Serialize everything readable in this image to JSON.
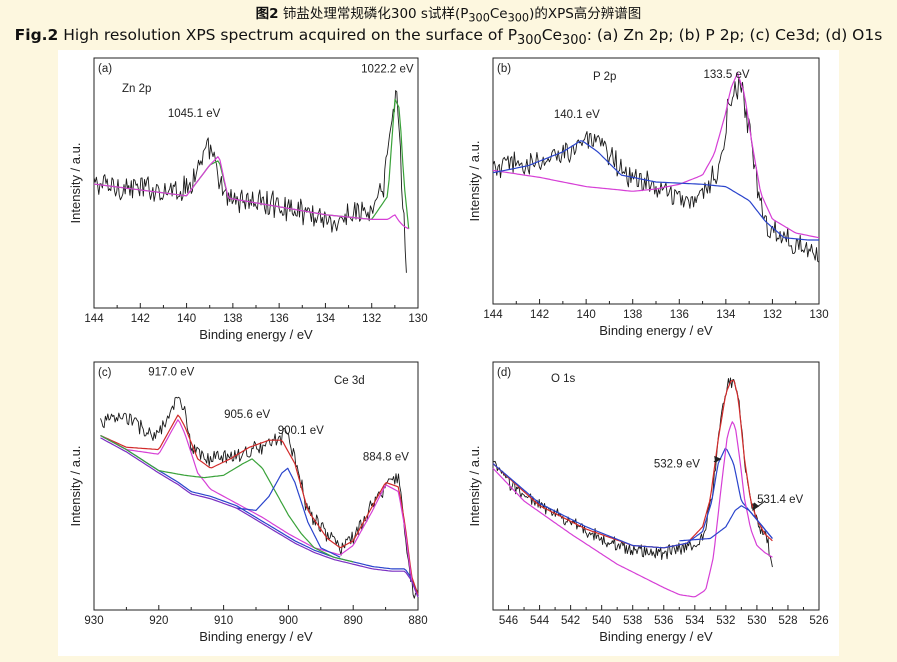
{
  "caption": {
    "cn_bold": "图2",
    "cn_text_a": " 铈盐处理常规磷化300 s试样(P",
    "cn_sub1": "300",
    "cn_text_b": "Ce",
    "cn_sub2": "300",
    "cn_text_c": ")的XPS高分辨谱图",
    "en_bold": "Fig.2",
    "en_text_a": " High resolution XPS spectrum acquired on the surface of P",
    "en_sub1": "300",
    "en_text_b": "Ce",
    "en_sub2": "300",
    "en_text_c": ": (a) Zn 2p; (b) P 2p; (c) Ce3d; (d) O1s"
  },
  "colors": {
    "raw": "#1a1a1a",
    "envelope": "#d22a2a",
    "magenta": "#d63fd6",
    "green": "#3aa23a",
    "blue": "#2a44cc",
    "purple": "#7a2fc2"
  },
  "chart_data": [
    {
      "panel": "(a)",
      "type": "line",
      "title": "Zn 2p",
      "xlabel": "Binding energy / eV",
      "ylabel": "Intensity / a.u.",
      "xlim": [
        144,
        130
      ],
      "ylim": [
        0,
        100
      ],
      "xticks": [
        144,
        142,
        140,
        138,
        136,
        134,
        132,
        130
      ],
      "annotations": [
        {
          "text": "1045.1 eV",
          "x": 139.6,
          "y": 75
        },
        {
          "text": "1022.2 eV",
          "x": 130.9,
          "y": 93
        }
      ],
      "series": [
        {
          "name": "raw",
          "color": "raw",
          "noise": 5,
          "x_end": 130.5,
          "x": [
            144,
            142,
            140,
            139.3,
            139,
            138.7,
            138.4,
            138,
            136,
            134,
            133.4,
            133,
            132,
            131.5,
            131.1,
            130.9,
            130.8,
            130.7,
            130.6,
            130.5
          ],
          "y": [
            50,
            48,
            48,
            60,
            65,
            56,
            44,
            44,
            41,
            36,
            32,
            38,
            38,
            48,
            80,
            88,
            72,
            50,
            35,
            15
          ]
        },
        {
          "name": "fit-green",
          "color": "green",
          "x": [
            144,
            140,
            139,
            138.6,
            138.2,
            137,
            134,
            132,
            131.3,
            131,
            130.8,
            130.6,
            130.4
          ],
          "y": [
            50,
            45,
            58,
            60,
            44,
            42,
            37,
            35,
            45,
            86,
            82,
            50,
            31
          ]
        },
        {
          "name": "fit-magenta",
          "color": "magenta",
          "x": [
            144,
            140,
            139,
            138.6,
            138.2,
            137,
            134,
            132,
            131.3,
            131,
            130.8,
            130.6,
            130.4
          ],
          "y": [
            50,
            45,
            58,
            62,
            44,
            42,
            37,
            35,
            35,
            37,
            34,
            32,
            31
          ]
        }
      ]
    },
    {
      "panel": "(b)",
      "type": "line",
      "title": "P 2p",
      "xlabel": "Binding energy / eV",
      "ylabel": "Intensity / a.u.",
      "xlim": [
        144,
        130
      ],
      "ylim": [
        0,
        100
      ],
      "xticks": [
        144,
        142,
        140,
        138,
        136,
        134,
        132,
        130
      ],
      "annotations": [
        {
          "text": "140.1 eV",
          "x": 140.1,
          "y": 75
        },
        {
          "text": "133.5 eV",
          "x": 133.5,
          "y": 93
        }
      ],
      "series": [
        {
          "name": "raw",
          "color": "raw",
          "noise": 5,
          "x": [
            144,
            143,
            142,
            141,
            140.1,
            139.5,
            138,
            137,
            136,
            135,
            134.3,
            133.9,
            133.6,
            133.3,
            133,
            132.6,
            132.2,
            131.5,
            131,
            130
          ],
          "y": [
            55,
            58,
            57,
            63,
            68,
            66,
            52,
            48,
            42,
            45,
            55,
            82,
            90,
            88,
            72,
            45,
            30,
            28,
            24,
            20
          ]
        },
        {
          "name": "fit-magenta",
          "color": "magenta",
          "x": [
            144,
            142,
            140,
            138,
            137,
            136,
            135,
            134.5,
            134,
            133.8,
            133.5,
            133.2,
            132.9,
            132.5,
            132,
            131,
            130
          ],
          "y": [
            55,
            52,
            48,
            46,
            47,
            49,
            53,
            62,
            80,
            90,
            97,
            88,
            68,
            45,
            34,
            28,
            26
          ]
        },
        {
          "name": "fit-blue",
          "color": "blue",
          "x": [
            144,
            142.5,
            141,
            140.2,
            139.5,
            138.5,
            137,
            135,
            134,
            133,
            132.3,
            131.5,
            130.5,
            130
          ],
          "y": [
            54,
            57,
            63,
            68,
            63,
            53,
            50,
            49,
            48,
            42,
            33,
            26,
            25,
            25
          ]
        }
      ]
    },
    {
      "panel": "(c)",
      "type": "line",
      "title": "Ce 3d",
      "xlabel": "Binding energy / eV",
      "ylabel": "Intensity / a.u.",
      "xlim": [
        930,
        880
      ],
      "ylim": [
        0,
        100
      ],
      "xticks": [
        930,
        920,
        910,
        900,
        890,
        880
      ],
      "annotations": [
        {
          "text": "917.0 eV",
          "x": 917.0,
          "y": 96
        },
        {
          "text": "905.6 eV",
          "x": 905.6,
          "y": 76
        },
        {
          "text": "900.1 eV",
          "x": 900.1,
          "y": 70
        },
        {
          "text": "884.8 eV",
          "x": 884.8,
          "y": 58
        }
      ],
      "series": [
        {
          "name": "raw",
          "color": "raw",
          "noise": 3,
          "x": [
            929,
            925,
            921,
            919,
            917.5,
            917,
            916,
            915,
            912,
            908,
            905,
            902,
            901,
            900.1,
            899,
            897,
            894,
            892,
            890,
            887,
            885,
            883,
            882,
            881,
            880
          ],
          "y": [
            78,
            80,
            72,
            76,
            86,
            88,
            82,
            65,
            62,
            64,
            66,
            70,
            72,
            74,
            62,
            40,
            30,
            24,
            28,
            42,
            50,
            55,
            30,
            8,
            2
          ]
        },
        {
          "name": "baseline-blue",
          "color": "blue",
          "x": [
            929,
            925,
            920,
            917,
            915,
            912,
            908,
            905,
            902,
            899,
            896,
            893,
            890,
            887,
            884,
            882,
            881,
            880
          ],
          "y": [
            72,
            66,
            57,
            52,
            48,
            46,
            42,
            37,
            32,
            27,
            23,
            20,
            18,
            16,
            15,
            15,
            11,
            4
          ]
        },
        {
          "name": "fit-envelope",
          "color": "envelope",
          "x": [
            929,
            925,
            920,
            918,
            917,
            916,
            914,
            912,
            909,
            906,
            903,
            901,
            899,
            897,
            894,
            892,
            890,
            887,
            885,
            883,
            882,
            881,
            880
          ],
          "y": [
            72,
            67,
            66,
            76,
            81,
            76,
            62,
            58,
            62,
            67,
            70,
            70,
            60,
            40,
            28,
            24,
            27,
            42,
            52,
            50,
            34,
            12,
            4
          ]
        },
        {
          "name": "fit-magenta",
          "color": "magenta",
          "x": [
            929,
            925,
            920,
            918,
            917,
            916,
            914,
            912,
            908,
            904,
            900,
            896,
            892,
            890,
            887,
            885,
            883,
            882,
            881,
            880
          ],
          "y": [
            72,
            66,
            64,
            74,
            79,
            73,
            56,
            49,
            43,
            37,
            30,
            24,
            21,
            25,
            40,
            51,
            48,
            32,
            10,
            3
          ]
        },
        {
          "name": "fit-green",
          "color": "green",
          "x": [
            929,
            925,
            920,
            916,
            913,
            910,
            907,
            905.6,
            904,
            902,
            900,
            898,
            896,
            893,
            890
          ],
          "y": [
            72,
            66,
            57,
            55,
            54,
            55,
            60,
            62,
            58,
            48,
            38,
            30,
            24,
            20,
            18
          ]
        },
        {
          "name": "fit-blue2",
          "color": "blue",
          "x": [
            908,
            905,
            903,
            901,
            900.1,
            899,
            897,
            895,
            892
          ],
          "y": [
            41,
            40,
            46,
            56,
            58,
            52,
            35,
            24,
            20
          ]
        },
        {
          "name": "baseline-purple",
          "color": "purple",
          "x": [
            929,
            925,
            920,
            917,
            915,
            912,
            908,
            905,
            902,
            899,
            896,
            893,
            890,
            887,
            884,
            882,
            881,
            880
          ],
          "y": [
            71,
            65,
            56,
            51,
            47,
            45,
            41,
            36,
            31,
            26,
            22,
            19,
            17,
            15,
            14,
            14,
            10,
            3
          ]
        }
      ]
    },
    {
      "panel": "(d)",
      "type": "line",
      "title": "O 1s",
      "xlabel": "Binding energy / eV",
      "ylabel": "Intensity / a.u.",
      "xlim": [
        547,
        526
      ],
      "ylim": [
        0,
        100
      ],
      "xticks": [
        546,
        544,
        542,
        540,
        538,
        536,
        534,
        532,
        530,
        528,
        526
      ],
      "annotations": [
        {
          "text": "532.9 eV",
          "x": 532.9,
          "y": 60
        },
        {
          "text": "531.4 eV",
          "x": 531.4,
          "y": 50
        }
      ],
      "series": [
        {
          "name": "raw",
          "color": "raw",
          "noise": 2.5,
          "x": [
            547,
            546,
            544,
            542,
            540,
            538,
            536,
            534.5,
            533.5,
            532.8,
            532.3,
            531.8,
            531.5,
            531.2,
            530.8,
            530.3,
            529.8,
            529.3,
            529
          ],
          "y": [
            60,
            52,
            42,
            35,
            28,
            23,
            22,
            24,
            28,
            50,
            82,
            95,
            95,
            88,
            62,
            42,
            32,
            27,
            15
          ]
        },
        {
          "name": "fit-envelope",
          "color": "envelope",
          "x": [
            547,
            544,
            541,
            538,
            536,
            534.5,
            533.5,
            533,
            532.5,
            532,
            531.7,
            531.5,
            531.2,
            530.8,
            530.4,
            530,
            529.5,
            529
          ],
          "y": [
            60,
            42,
            32,
            25,
            24,
            26,
            33,
            45,
            70,
            90,
            95,
            96,
            88,
            62,
            44,
            36,
            30,
            27
          ]
        },
        {
          "name": "fit-blue",
          "color": "blue",
          "x": [
            547,
            544,
            541,
            538,
            536,
            534.5,
            533.5,
            532.9,
            532.5,
            532,
            531.5,
            531,
            530.5,
            530,
            529.5,
            529
          ],
          "y": [
            60,
            43,
            33,
            25,
            24,
            26,
            31,
            44,
            60,
            67,
            60,
            44,
            40,
            36,
            32,
            28
          ]
        },
        {
          "name": "fit-magenta",
          "color": "magenta",
          "x": [
            547,
            545,
            542,
            539,
            536,
            535,
            534,
            533.3,
            532.8,
            532.3,
            531.9,
            531.6,
            531.4,
            531.1,
            530.8,
            530.4,
            530,
            529.5,
            529
          ],
          "y": [
            58,
            44,
            30,
            17,
            7,
            4,
            3,
            6,
            20,
            50,
            72,
            78,
            76,
            62,
            45,
            32,
            25,
            22,
            20
          ]
        },
        {
          "name": "fit-blue2",
          "color": "blue",
          "x": [
            535,
            533,
            532,
            531.4,
            531,
            530.5,
            530,
            529.5,
            529
          ],
          "y": [
            27,
            28,
            33,
            40,
            42,
            40,
            36,
            32,
            28
          ]
        }
      ]
    }
  ]
}
